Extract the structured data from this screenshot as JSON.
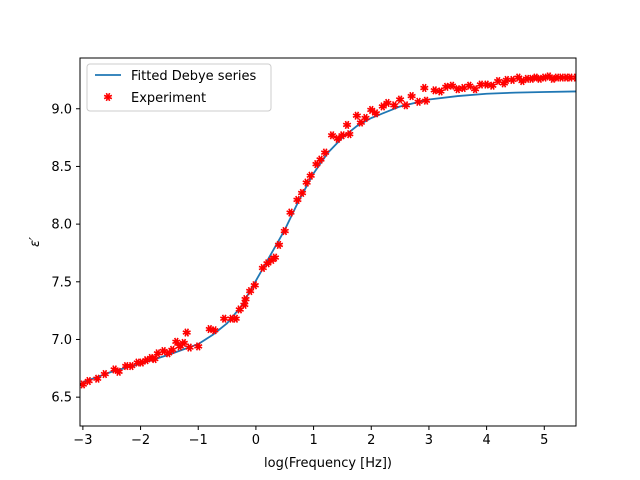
{
  "chart_data": {
    "type": "line",
    "title": "",
    "xlabel": "log(Frequency [Hz])",
    "ylabel": "ε′",
    "xlim": [
      -3.05,
      5.55
    ],
    "ylim": [
      6.25,
      9.44
    ],
    "xticks": [
      -3,
      -2,
      -1,
      0,
      1,
      2,
      3,
      4,
      5
    ],
    "yticks": [
      6.5,
      7.0,
      7.5,
      8.0,
      8.5,
      9.0
    ],
    "xtick_labels": [
      "−3",
      "−2",
      "−1",
      "0",
      "1",
      "2",
      "3",
      "4",
      "5"
    ],
    "ytick_labels": [
      "6.5",
      "7.0",
      "7.5",
      "8.0",
      "8.5",
      "9.0"
    ],
    "legend_position": "top-left",
    "grid": false,
    "series": [
      {
        "name": "Fitted Debye series",
        "kind": "line",
        "color": "#1f77b4",
        "x": [
          -3.0,
          -2.5,
          -2.0,
          -1.5,
          -1.0,
          -0.75,
          -0.5,
          -0.25,
          0.0,
          0.25,
          0.5,
          0.75,
          1.0,
          1.25,
          1.5,
          1.75,
          2.0,
          2.5,
          3.0,
          3.5,
          4.0,
          4.5,
          5.0,
          5.55
        ],
        "y": [
          6.63,
          6.72,
          6.79,
          6.87,
          6.96,
          7.04,
          7.14,
          7.29,
          7.51,
          7.73,
          7.95,
          8.21,
          8.44,
          8.62,
          8.75,
          8.85,
          8.92,
          9.02,
          9.08,
          9.11,
          9.13,
          9.14,
          9.145,
          9.15
        ]
      },
      {
        "name": "Experiment",
        "kind": "scatter",
        "color": "#ff0000",
        "x": [
          -3.0,
          -2.9,
          -2.75,
          -2.62,
          -2.45,
          -2.38,
          -2.25,
          -2.16,
          -2.05,
          -1.98,
          -1.9,
          -1.82,
          -1.76,
          -1.7,
          -1.6,
          -1.52,
          -1.45,
          -1.38,
          -1.32,
          -1.25,
          -1.2,
          -1.15,
          -1.0,
          -0.8,
          -0.72,
          -0.55,
          -0.42,
          -0.35,
          -0.28,
          -0.2,
          -0.18,
          -0.1,
          -0.02,
          0.12,
          0.2,
          0.28,
          0.33,
          0.4,
          0.5,
          0.6,
          0.72,
          0.8,
          0.88,
          0.95,
          1.05,
          1.12,
          1.2,
          1.32,
          1.42,
          1.5,
          1.58,
          1.62,
          1.75,
          1.82,
          1.9,
          2.0,
          2.08,
          2.2,
          2.28,
          2.4,
          2.5,
          2.6,
          2.7,
          2.82,
          2.92,
          2.95,
          3.1,
          3.2,
          3.3,
          3.4,
          3.5,
          3.6,
          3.7,
          3.8,
          3.9,
          4.0,
          4.1,
          4.2,
          4.3,
          4.35,
          4.45,
          4.55,
          4.62,
          4.7,
          4.78,
          4.85,
          4.92,
          5.0,
          5.08,
          5.15,
          5.22,
          5.3,
          5.38,
          5.45,
          5.55
        ],
        "y": [
          6.61,
          6.64,
          6.66,
          6.7,
          6.74,
          6.72,
          6.77,
          6.77,
          6.8,
          6.8,
          6.82,
          6.84,
          6.83,
          6.88,
          6.9,
          6.88,
          6.91,
          6.98,
          6.94,
          6.97,
          7.06,
          6.93,
          6.94,
          7.09,
          7.08,
          7.18,
          7.18,
          7.18,
          7.26,
          7.3,
          7.35,
          7.42,
          7.47,
          7.62,
          7.66,
          7.69,
          7.71,
          7.82,
          7.94,
          8.1,
          8.21,
          8.27,
          8.36,
          8.42,
          8.52,
          8.56,
          8.62,
          8.77,
          8.74,
          8.77,
          8.86,
          8.78,
          8.94,
          8.88,
          8.92,
          8.99,
          8.96,
          9.02,
          9.05,
          9.03,
          9.08,
          9.03,
          9.11,
          9.06,
          9.18,
          9.07,
          9.16,
          9.15,
          9.19,
          9.2,
          9.17,
          9.18,
          9.2,
          9.17,
          9.21,
          9.21,
          9.2,
          9.24,
          9.22,
          9.25,
          9.25,
          9.27,
          9.24,
          9.26,
          9.26,
          9.27,
          9.26,
          9.27,
          9.28,
          9.26,
          9.27,
          9.27,
          9.27,
          9.27,
          9.27
        ]
      }
    ]
  }
}
